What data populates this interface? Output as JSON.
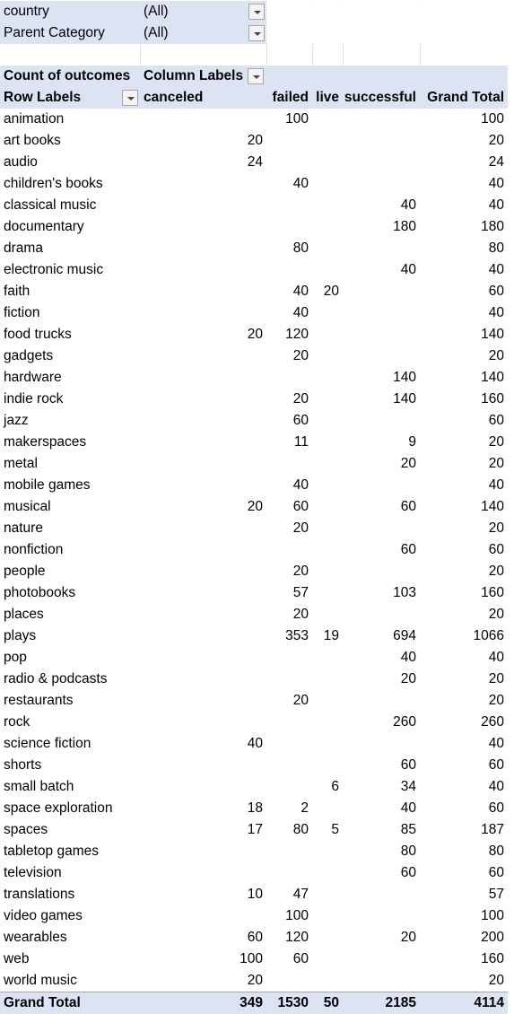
{
  "filters": [
    {
      "label": "country",
      "value": "(All)"
    },
    {
      "label": "Parent Category",
      "value": "(All)"
    }
  ],
  "pivot": {
    "measure_label": "Count of outcomes",
    "column_labels_label": "Column Labels",
    "row_labels_label": "Row Labels",
    "columns": [
      "canceled",
      "failed",
      "live",
      "successful",
      "Grand Total"
    ],
    "rows": [
      {
        "label": "animation",
        "values": [
          "",
          "100",
          "",
          "",
          "100"
        ]
      },
      {
        "label": "art books",
        "values": [
          "20",
          "",
          "",
          "",
          "20"
        ]
      },
      {
        "label": "audio",
        "values": [
          "24",
          "",
          "",
          "",
          "24"
        ]
      },
      {
        "label": "children's books",
        "values": [
          "",
          "40",
          "",
          "",
          "40"
        ]
      },
      {
        "label": "classical music",
        "values": [
          "",
          "",
          "",
          "40",
          "40"
        ]
      },
      {
        "label": "documentary",
        "values": [
          "",
          "",
          "",
          "180",
          "180"
        ]
      },
      {
        "label": "drama",
        "values": [
          "",
          "80",
          "",
          "",
          "80"
        ]
      },
      {
        "label": "electronic music",
        "values": [
          "",
          "",
          "",
          "40",
          "40"
        ]
      },
      {
        "label": "faith",
        "values": [
          "",
          "40",
          "20",
          "",
          "60"
        ]
      },
      {
        "label": "fiction",
        "values": [
          "",
          "40",
          "",
          "",
          "40"
        ]
      },
      {
        "label": "food trucks",
        "values": [
          "20",
          "120",
          "",
          "",
          "140"
        ]
      },
      {
        "label": "gadgets",
        "values": [
          "",
          "20",
          "",
          "",
          "20"
        ]
      },
      {
        "label": "hardware",
        "values": [
          "",
          "",
          "",
          "140",
          "140"
        ]
      },
      {
        "label": "indie rock",
        "values": [
          "",
          "20",
          "",
          "140",
          "160"
        ]
      },
      {
        "label": "jazz",
        "values": [
          "",
          "60",
          "",
          "",
          "60"
        ]
      },
      {
        "label": "makerspaces",
        "values": [
          "",
          "11",
          "",
          "9",
          "20"
        ]
      },
      {
        "label": "metal",
        "values": [
          "",
          "",
          "",
          "20",
          "20"
        ]
      },
      {
        "label": "mobile games",
        "values": [
          "",
          "40",
          "",
          "",
          "40"
        ]
      },
      {
        "label": "musical",
        "values": [
          "20",
          "60",
          "",
          "60",
          "140"
        ]
      },
      {
        "label": "nature",
        "values": [
          "",
          "20",
          "",
          "",
          "20"
        ]
      },
      {
        "label": "nonfiction",
        "values": [
          "",
          "",
          "",
          "60",
          "60"
        ]
      },
      {
        "label": "people",
        "values": [
          "",
          "20",
          "",
          "",
          "20"
        ]
      },
      {
        "label": "photobooks",
        "values": [
          "",
          "57",
          "",
          "103",
          "160"
        ]
      },
      {
        "label": "places",
        "values": [
          "",
          "20",
          "",
          "",
          "20"
        ]
      },
      {
        "label": "plays",
        "values": [
          "",
          "353",
          "19",
          "694",
          "1066"
        ]
      },
      {
        "label": "pop",
        "values": [
          "",
          "",
          "",
          "40",
          "40"
        ]
      },
      {
        "label": "radio & podcasts",
        "values": [
          "",
          "",
          "",
          "20",
          "20"
        ]
      },
      {
        "label": "restaurants",
        "values": [
          "",
          "20",
          "",
          "",
          "20"
        ]
      },
      {
        "label": "rock",
        "values": [
          "",
          "",
          "",
          "260",
          "260"
        ]
      },
      {
        "label": "science fiction",
        "values": [
          "40",
          "",
          "",
          "",
          "40"
        ]
      },
      {
        "label": "shorts",
        "values": [
          "",
          "",
          "",
          "60",
          "60"
        ]
      },
      {
        "label": "small batch",
        "values": [
          "",
          "",
          "6",
          "34",
          "40"
        ]
      },
      {
        "label": "space exploration",
        "values": [
          "18",
          "2",
          "",
          "40",
          "60"
        ]
      },
      {
        "label": "spaces",
        "values": [
          "17",
          "80",
          "5",
          "85",
          "187"
        ]
      },
      {
        "label": "tabletop games",
        "values": [
          "",
          "",
          "",
          "80",
          "80"
        ]
      },
      {
        "label": "television",
        "values": [
          "",
          "",
          "",
          "60",
          "60"
        ]
      },
      {
        "label": "translations",
        "values": [
          "10",
          "47",
          "",
          "",
          "57"
        ]
      },
      {
        "label": "video games",
        "values": [
          "",
          "100",
          "",
          "",
          "100"
        ]
      },
      {
        "label": "wearables",
        "values": [
          "60",
          "120",
          "",
          "20",
          "200"
        ]
      },
      {
        "label": "web",
        "values": [
          "100",
          "60",
          "",
          "",
          "160"
        ]
      },
      {
        "label": "world music",
        "values": [
          "20",
          "",
          "",
          "",
          "20"
        ]
      }
    ],
    "grand_total": {
      "label": "Grand Total",
      "values": [
        "349",
        "1530",
        "50",
        "2185",
        "4114"
      ]
    }
  },
  "colors": {
    "header_fill": "#dce4f4",
    "grid": "#e2e2e2",
    "total_border": "#8ea9db"
  },
  "icons": {
    "filter_dropdown": "chevron-down-icon"
  }
}
